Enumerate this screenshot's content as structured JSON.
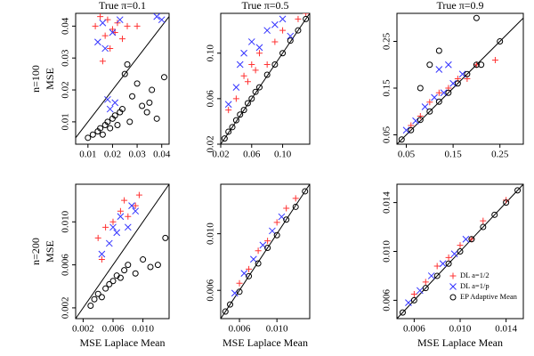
{
  "chart_data": [
    {
      "type": "scatter",
      "title": "True π=0.1",
      "row_label": "n=100",
      "ylabel": "MSE",
      "xlim": [
        0.005,
        0.043
      ],
      "ylim": [
        0.003,
        0.044
      ],
      "xticks": [
        0.01,
        0.02,
        0.03,
        0.04
      ],
      "yticks": [
        0.01,
        0.02,
        0.03,
        0.04
      ],
      "series": [
        {
          "color": "#ff3333",
          "marker": "+",
          "x": [
            0.013,
            0.015,
            0.017,
            0.018,
            0.02,
            0.022,
            0.024,
            0.026,
            0.016,
            0.019,
            0.021,
            0.03
          ],
          "y": [
            0.04,
            0.043,
            0.037,
            0.042,
            0.039,
            0.041,
            0.036,
            0.04,
            0.029,
            0.033,
            0.038,
            0.04
          ]
        },
        {
          "color": "#3333ff",
          "marker": "x",
          "x": [
            0.014,
            0.016,
            0.018,
            0.02,
            0.023,
            0.017,
            0.019,
            0.038,
            0.04,
            0.021
          ],
          "y": [
            0.035,
            0.041,
            0.017,
            0.038,
            0.042,
            0.033,
            0.014,
            0.043,
            0.042,
            0.016
          ]
        },
        {
          "color": "#000000",
          "marker": "o",
          "x": [
            0.01,
            0.012,
            0.014,
            0.015,
            0.016,
            0.017,
            0.018,
            0.019,
            0.02,
            0.021,
            0.022,
            0.023,
            0.025,
            0.026,
            0.028,
            0.03,
            0.032,
            0.034,
            0.036,
            0.038,
            0.041,
            0.024,
            0.027,
            0.035
          ],
          "y": [
            0.005,
            0.006,
            0.007,
            0.008,
            0.006,
            0.009,
            0.01,
            0.008,
            0.011,
            0.012,
            0.009,
            0.013,
            0.025,
            0.028,
            0.018,
            0.022,
            0.015,
            0.013,
            0.02,
            0.011,
            0.024,
            0.014,
            0.01,
            0.016
          ]
        }
      ]
    },
    {
      "type": "scatter",
      "title": "True π=0.5",
      "xlim": [
        0.02,
        0.135
      ],
      "ylim": [
        0.02,
        0.135
      ],
      "xticks": [
        0.02,
        0.06,
        {
          "value": 0.1,
          "label": "0.10"
        }
      ],
      "yticks": [
        0.02,
        0.06,
        {
          "value": 0.1,
          "label": "0.10"
        }
      ],
      "series": [
        {
          "color": "#ff3333",
          "marker": "+",
          "x": [
            0.03,
            0.04,
            0.05,
            0.055,
            0.06,
            0.065,
            0.07,
            0.08,
            0.09,
            0.1,
            0.12,
            0.13
          ],
          "y": [
            0.05,
            0.06,
            0.08,
            0.075,
            0.09,
            0.085,
            0.1,
            0.09,
            0.11,
            0.12,
            0.13,
            0.135
          ]
        },
        {
          "color": "#3333ff",
          "marker": "x",
          "x": [
            0.03,
            0.04,
            0.045,
            0.05,
            0.06,
            0.07,
            0.08,
            0.09,
            0.1,
            0.11
          ],
          "y": [
            0.055,
            0.07,
            0.09,
            0.1,
            0.11,
            0.105,
            0.12,
            0.125,
            0.13,
            0.115
          ]
        },
        {
          "color": "#000000",
          "marker": "o",
          "x": [
            0.025,
            0.03,
            0.035,
            0.04,
            0.045,
            0.05,
            0.055,
            0.06,
            0.065,
            0.07,
            0.08,
            0.09,
            0.1,
            0.11,
            0.12,
            0.13
          ],
          "y": [
            0.025,
            0.031,
            0.035,
            0.041,
            0.046,
            0.05,
            0.056,
            0.06,
            0.066,
            0.07,
            0.081,
            0.09,
            0.1,
            0.111,
            0.12,
            0.13
          ]
        }
      ]
    },
    {
      "type": "scatter",
      "title": "True π=0.9",
      "xlim": [
        0.03,
        0.3
      ],
      "ylim": [
        0.03,
        0.31
      ],
      "xticks": [
        0.05,
        0.15,
        0.25
      ],
      "yticks": [
        0.05,
        0.15,
        0.25
      ],
      "series": [
        {
          "color": "#ff3333",
          "marker": "+",
          "x": [
            0.06,
            0.08,
            0.1,
            0.12,
            0.14,
            0.16,
            0.18,
            0.2,
            0.24
          ],
          "y": [
            0.07,
            0.09,
            0.12,
            0.14,
            0.15,
            0.17,
            0.17,
            0.2,
            0.21
          ]
        },
        {
          "color": "#3333ff",
          "marker": "x",
          "x": [
            0.05,
            0.07,
            0.09,
            0.11,
            0.13,
            0.15,
            0.17,
            0.12,
            0.14
          ],
          "y": [
            0.06,
            0.08,
            0.11,
            0.13,
            0.14,
            0.16,
            0.18,
            0.19,
            0.2
          ]
        },
        {
          "color": "#000000",
          "marker": "o",
          "x": [
            0.04,
            0.06,
            0.08,
            0.1,
            0.12,
            0.14,
            0.16,
            0.18,
            0.2,
            0.25,
            0.08,
            0.1,
            0.12,
            0.2,
            0.21
          ],
          "y": [
            0.04,
            0.06,
            0.082,
            0.1,
            0.121,
            0.14,
            0.16,
            0.18,
            0.2,
            0.25,
            0.15,
            0.2,
            0.23,
            0.3,
            0.2
          ]
        }
      ]
    },
    {
      "type": "scatter",
      "row_label": "n=200",
      "ylabel": "MSE",
      "xlabel": "MSE Laplace Mean",
      "xlim": [
        0.001,
        0.0135
      ],
      "ylim": [
        0.001,
        0.0135
      ],
      "xticks": [
        0.002,
        0.006,
        {
          "value": 0.01,
          "label": "0.010"
        }
      ],
      "yticks": [
        0.002,
        0.006,
        {
          "value": 0.01,
          "label": "0.010"
        }
      ],
      "series": [
        {
          "color": "#ff3333",
          "marker": "+",
          "x": [
            0.004,
            0.005,
            0.006,
            0.007,
            0.0075,
            0.008,
            0.009,
            0.0095,
            0.0045
          ],
          "y": [
            0.0085,
            0.0095,
            0.01,
            0.011,
            0.012,
            0.0105,
            0.0115,
            0.0125,
            0.0065
          ]
        },
        {
          "color": "#3333ff",
          "marker": "x",
          "x": [
            0.0045,
            0.0055,
            0.006,
            0.0065,
            0.007,
            0.008,
            0.0085,
            0.009
          ],
          "y": [
            0.007,
            0.008,
            0.0095,
            0.009,
            0.0105,
            0.0095,
            0.0115,
            0.011
          ]
        },
        {
          "color": "#000000",
          "marker": "o",
          "x": [
            0.003,
            0.0035,
            0.004,
            0.0045,
            0.005,
            0.0055,
            0.006,
            0.0065,
            0.007,
            0.0075,
            0.008,
            0.009,
            0.01,
            0.011,
            0.012,
            0.013
          ],
          "y": [
            0.0022,
            0.0028,
            0.0033,
            0.003,
            0.0038,
            0.0042,
            0.0045,
            0.005,
            0.0048,
            0.0055,
            0.006,
            0.0052,
            0.0065,
            0.0058,
            0.006,
            0.0085
          ]
        }
      ]
    },
    {
      "type": "scatter",
      "xlabel": "MSE Laplace Mean",
      "xlim": [
        0.004,
        0.0135
      ],
      "ylim": [
        0.004,
        0.0135
      ],
      "xticks": [
        0.006,
        {
          "value": 0.01,
          "label": "0.010"
        }
      ],
      "yticks": [
        0.006,
        {
          "value": 0.01,
          "label": "0.010"
        }
      ],
      "series": [
        {
          "color": "#ff3333",
          "marker": "+",
          "x": [
            0.006,
            0.007,
            0.008,
            0.009,
            0.01,
            0.011,
            0.012
          ],
          "y": [
            0.0065,
            0.0075,
            0.0088,
            0.0095,
            0.0108,
            0.0118,
            0.0125
          ]
        },
        {
          "color": "#3333ff",
          "marker": "x",
          "x": [
            0.0055,
            0.0065,
            0.0075,
            0.0085,
            0.0095,
            0.0105
          ],
          "y": [
            0.0058,
            0.0072,
            0.0082,
            0.0092,
            0.0102,
            0.0112
          ]
        },
        {
          "color": "#000000",
          "marker": "o",
          "x": [
            0.0045,
            0.005,
            0.006,
            0.007,
            0.008,
            0.009,
            0.01,
            0.011,
            0.012,
            0.013
          ],
          "y": [
            0.0045,
            0.005,
            0.0059,
            0.007,
            0.0079,
            0.009,
            0.0099,
            0.011,
            0.0119,
            0.013
          ]
        }
      ]
    },
    {
      "type": "scatter",
      "xlabel": "MSE Laplace Mean",
      "legend": "bottomright",
      "xlim": [
        0.0045,
        0.0155
      ],
      "ylim": [
        0.0045,
        0.0155
      ],
      "xticks": [
        0.006,
        {
          "value": 0.01,
          "label": "0.010"
        },
        0.014
      ],
      "yticks": [
        0.006,
        {
          "value": 0.01,
          "label": "0.010"
        },
        0.014
      ],
      "series": [
        {
          "name": "DL a=1/2",
          "color": "#ff3333",
          "marker": "+",
          "x": [
            0.006,
            0.007,
            0.008,
            0.009,
            0.01,
            0.011,
            0.012,
            0.014
          ],
          "y": [
            0.0065,
            0.0075,
            0.0088,
            0.0095,
            0.0105,
            0.011,
            0.0125,
            0.0142
          ]
        },
        {
          "name": "DL a=1/p",
          "color": "#3333ff",
          "marker": "x",
          "x": [
            0.0055,
            0.0065,
            0.0075,
            0.0085,
            0.0095,
            0.0105
          ],
          "y": [
            0.0058,
            0.0068,
            0.008,
            0.009,
            0.0098,
            0.011
          ]
        },
        {
          "name": "EP Adaptive Mean",
          "color": "#000000",
          "marker": "o",
          "x": [
            0.005,
            0.006,
            0.007,
            0.008,
            0.009,
            0.01,
            0.011,
            0.012,
            0.013,
            0.014,
            0.015
          ],
          "y": [
            0.005,
            0.006,
            0.007,
            0.008,
            0.009,
            0.01,
            0.011,
            0.012,
            0.013,
            0.014,
            0.015
          ]
        }
      ]
    }
  ]
}
